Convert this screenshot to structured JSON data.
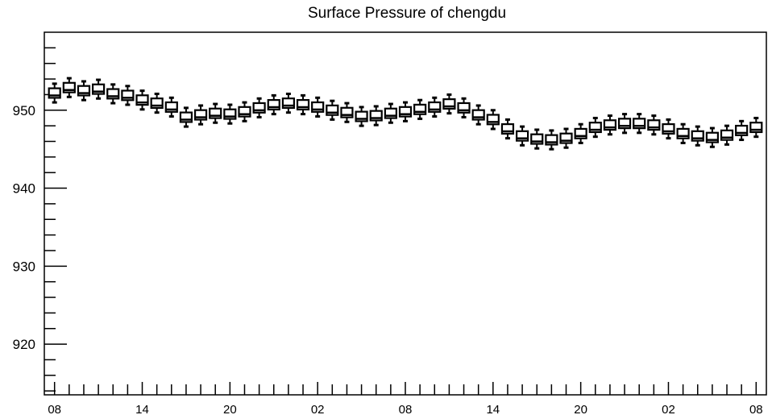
{
  "chart_data": {
    "type": "box",
    "title": "Surface Pressure of chengdu",
    "xlabel": "",
    "ylabel": "",
    "ylim": [
      913.5,
      960
    ],
    "ytick_labels": [
      "920",
      "930",
      "940",
      "950"
    ],
    "ytick_values": [
      920,
      930,
      940,
      950
    ],
    "x_index_range": [
      -0.7,
      48.7
    ],
    "xtick_labels": [
      "08",
      "14",
      "20",
      "02",
      "08",
      "14",
      "20",
      "02",
      "08"
    ],
    "xtick_index": [
      0,
      6,
      12,
      18,
      24,
      30,
      36,
      42,
      48
    ],
    "grid": false,
    "legend": "none",
    "series": [
      {
        "median": [
          952.2,
          952.9,
          952.5,
          952.7,
          952.1,
          951.9,
          951.3,
          950.9,
          950.4,
          949.1,
          949.4,
          949.6,
          949.5,
          949.8,
          950.3,
          950.7,
          950.9,
          950.7,
          950.4,
          950.0,
          949.7,
          949.2,
          949.3,
          949.6,
          949.8,
          950.1,
          950.4,
          950.8,
          950.3,
          949.4,
          948.8,
          947.6,
          946.7,
          946.3,
          946.2,
          946.4,
          947.0,
          947.8,
          948.1,
          948.3,
          948.3,
          948.1,
          947.6,
          947.0,
          946.7,
          946.5,
          946.8,
          947.4,
          947.8
        ],
        "spread": 0.6,
        "whisker": 1.2
      }
    ]
  }
}
